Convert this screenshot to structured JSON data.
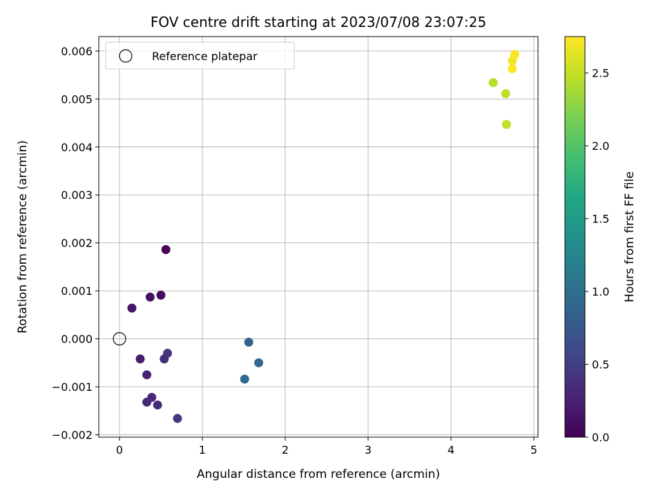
{
  "chart_data": {
    "type": "scatter",
    "title": "FOV centre drift starting at 2023/07/08 23:07:25",
    "xlabel": "Angular distance from reference (arcmin)",
    "ylabel": "Rotation from reference (arcmin)",
    "xlim": [
      -0.25,
      5.05
    ],
    "ylim": [
      -0.00205,
      0.0063
    ],
    "xticks": [
      0,
      1,
      2,
      3,
      4,
      5
    ],
    "xtick_labels": [
      "0",
      "1",
      "2",
      "3",
      "4",
      "5"
    ],
    "yticks": [
      -0.002,
      -0.001,
      0.0,
      0.001,
      0.002,
      0.003,
      0.004,
      0.005,
      0.006
    ],
    "ytick_labels": [
      "−0.002",
      "−0.001",
      "0.000",
      "0.001",
      "0.002",
      "0.003",
      "0.004",
      "0.005",
      "0.006"
    ],
    "grid": true,
    "legend": {
      "position": "upper-left",
      "entries": [
        "Reference platepar"
      ]
    },
    "reference_point": {
      "x": 0.0,
      "y": 0.0
    },
    "colorbar": {
      "label": "Hours from first FF file",
      "range": [
        0.0,
        2.75
      ],
      "ticks": [
        0.0,
        0.5,
        1.0,
        1.5,
        2.0,
        2.5
      ],
      "tick_labels": [
        "0.0",
        "0.5",
        "1.0",
        "1.5",
        "2.0",
        "2.5"
      ],
      "colormap": "viridis"
    },
    "points": [
      {
        "x": 0.56,
        "y": 0.00186,
        "hours": 0.02
      },
      {
        "x": 0.5,
        "y": 0.00091,
        "hours": 0.07
      },
      {
        "x": 0.37,
        "y": 0.00087,
        "hours": 0.12
      },
      {
        "x": 0.15,
        "y": 0.00064,
        "hours": 0.17
      },
      {
        "x": 0.25,
        "y": -0.00042,
        "hours": 0.22
      },
      {
        "x": 0.33,
        "y": -0.00075,
        "hours": 0.26
      },
      {
        "x": 0.33,
        "y": -0.00132,
        "hours": 0.3
      },
      {
        "x": 0.39,
        "y": -0.00122,
        "hours": 0.32
      },
      {
        "x": 0.46,
        "y": -0.00138,
        "hours": 0.35
      },
      {
        "x": 0.54,
        "y": -0.00042,
        "hours": 0.38
      },
      {
        "x": 0.58,
        "y": -0.0003,
        "hours": 0.41
      },
      {
        "x": 0.7,
        "y": -0.00166,
        "hours": 0.44
      },
      {
        "x": 1.56,
        "y": -7e-05,
        "hours": 0.88
      },
      {
        "x": 1.68,
        "y": -0.0005,
        "hours": 0.91
      },
      {
        "x": 1.51,
        "y": -0.00084,
        "hours": 0.94
      },
      {
        "x": 4.51,
        "y": 0.00534,
        "hours": 2.45
      },
      {
        "x": 4.66,
        "y": 0.00511,
        "hours": 2.48
      },
      {
        "x": 4.67,
        "y": 0.00447,
        "hours": 2.5
      },
      {
        "x": 4.74,
        "y": 0.0058,
        "hours": 2.7
      },
      {
        "x": 4.77,
        "y": 0.00593,
        "hours": 2.73
      },
      {
        "x": 4.74,
        "y": 0.00563,
        "hours": 2.75
      }
    ]
  }
}
